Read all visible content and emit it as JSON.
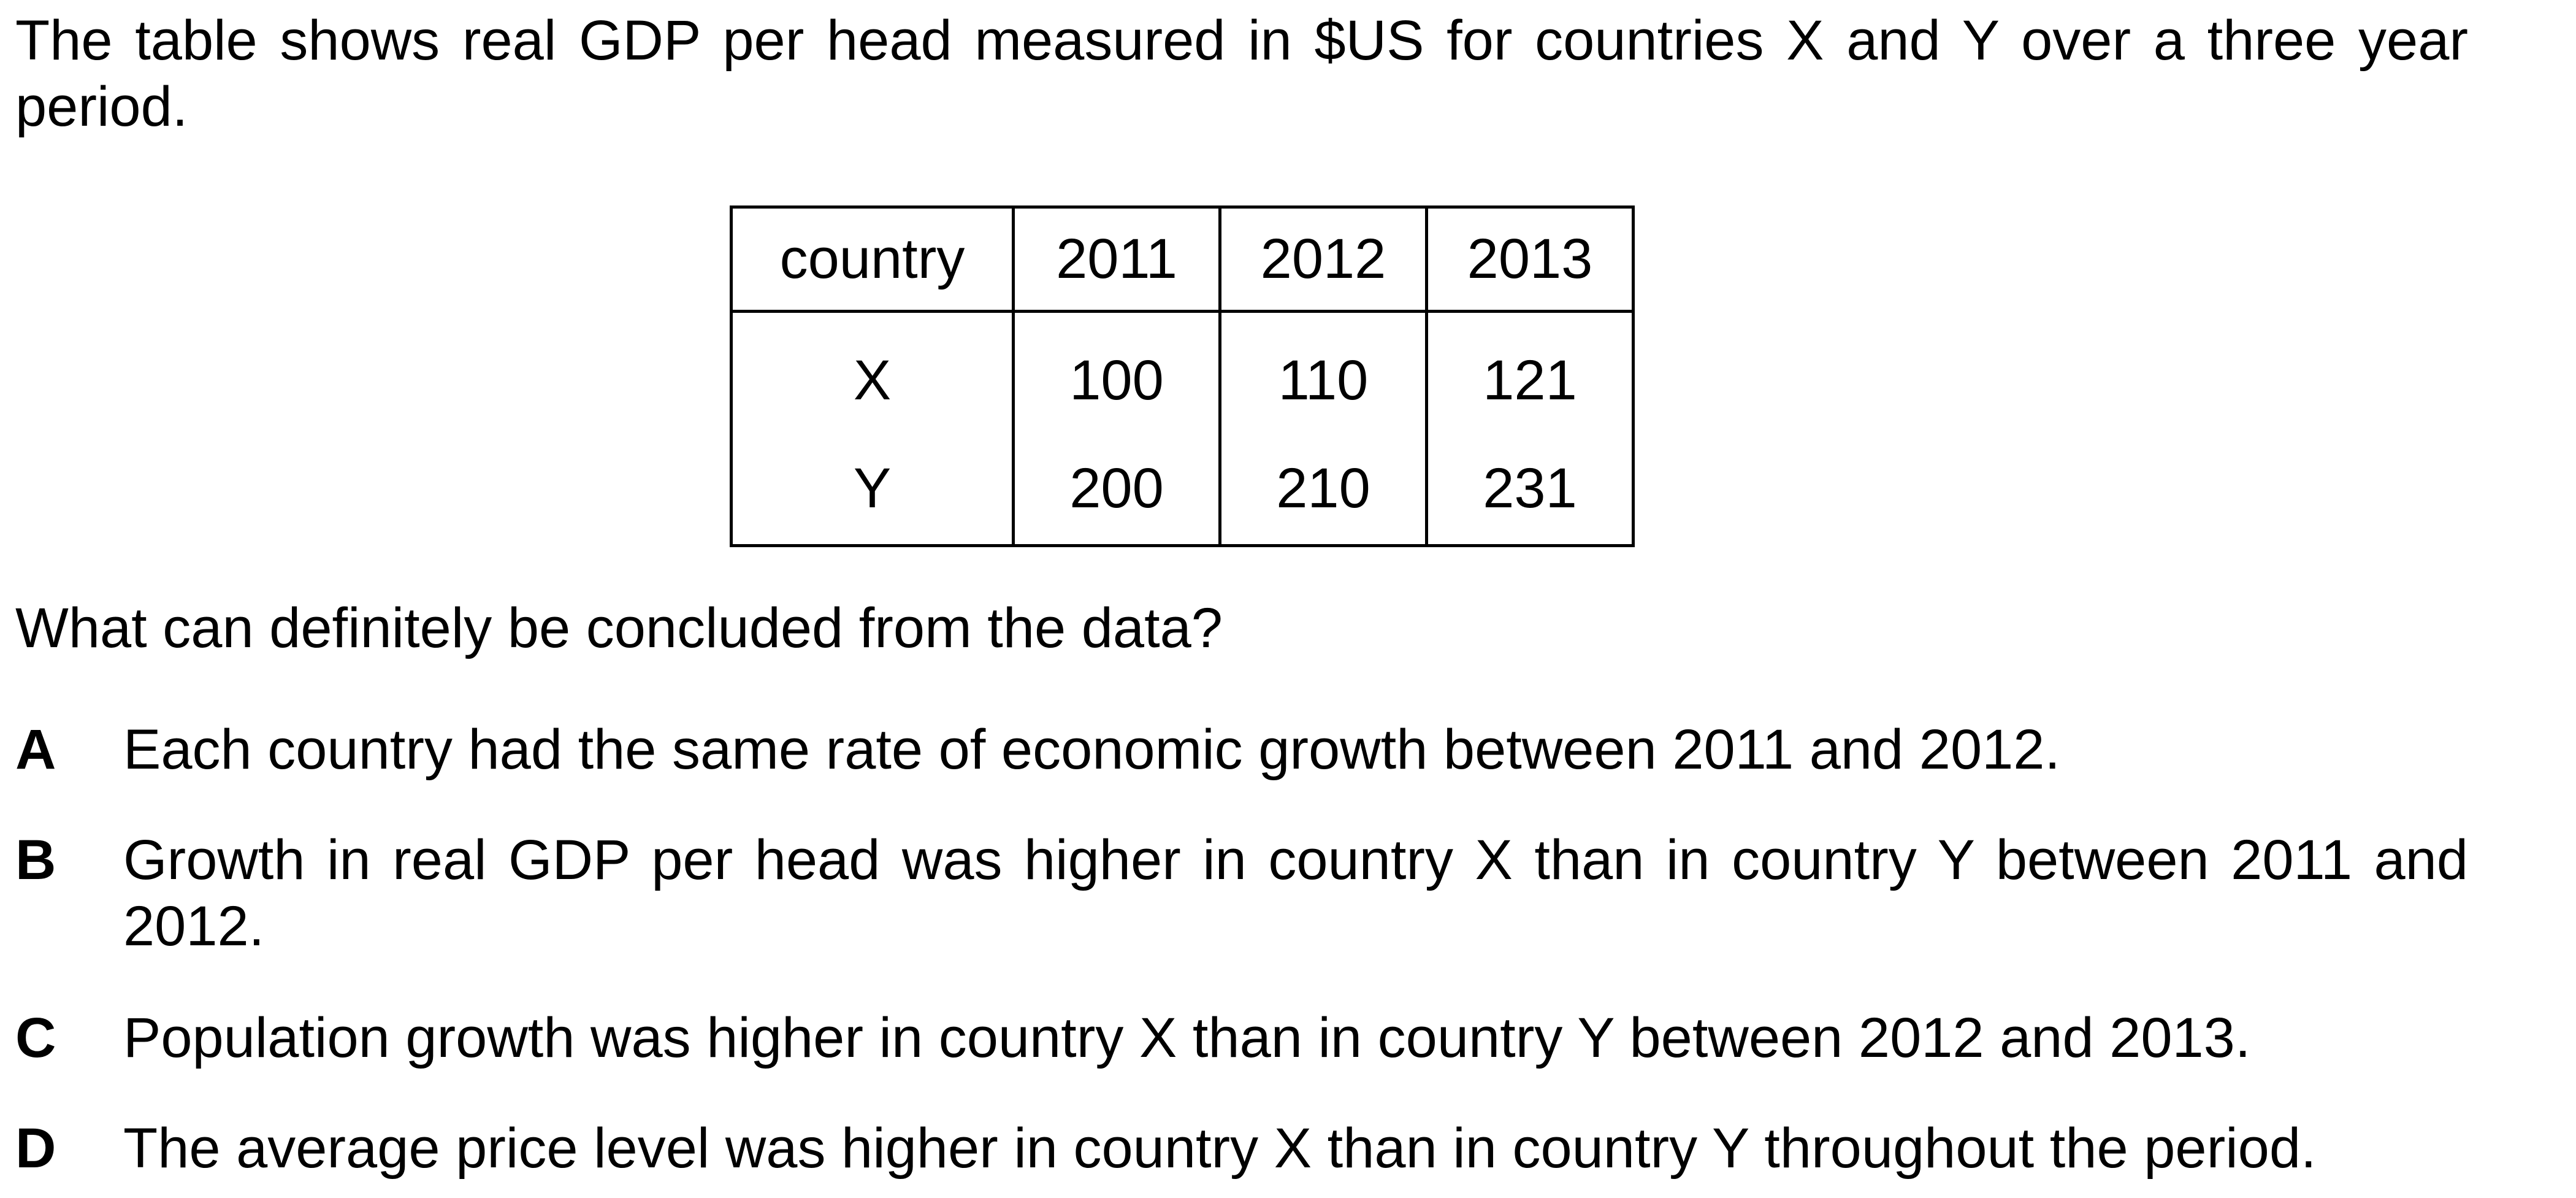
{
  "intro": "The table shows real GDP per head measured in $US for countries X and Y over a three year period.",
  "table": {
    "header": [
      "country",
      "2011",
      "2012",
      "2013"
    ],
    "rows": [
      [
        "X",
        "100",
        "110",
        "121"
      ],
      [
        "Y",
        "200",
        "210",
        "231"
      ]
    ]
  },
  "question": "What can definitely be concluded from the data?",
  "options": [
    {
      "letter": "A",
      "text": "Each country had the same rate of economic growth between 2011 and 2012."
    },
    {
      "letter": "B",
      "text": "Growth in real GDP per head was higher in country X than in country Y between 2011 and 2012."
    },
    {
      "letter": "C",
      "text": "Population growth was higher in country X than in country Y between 2012 and 2013."
    },
    {
      "letter": "D",
      "text": "The average price level was higher in country X than in country Y throughout the period."
    }
  ]
}
